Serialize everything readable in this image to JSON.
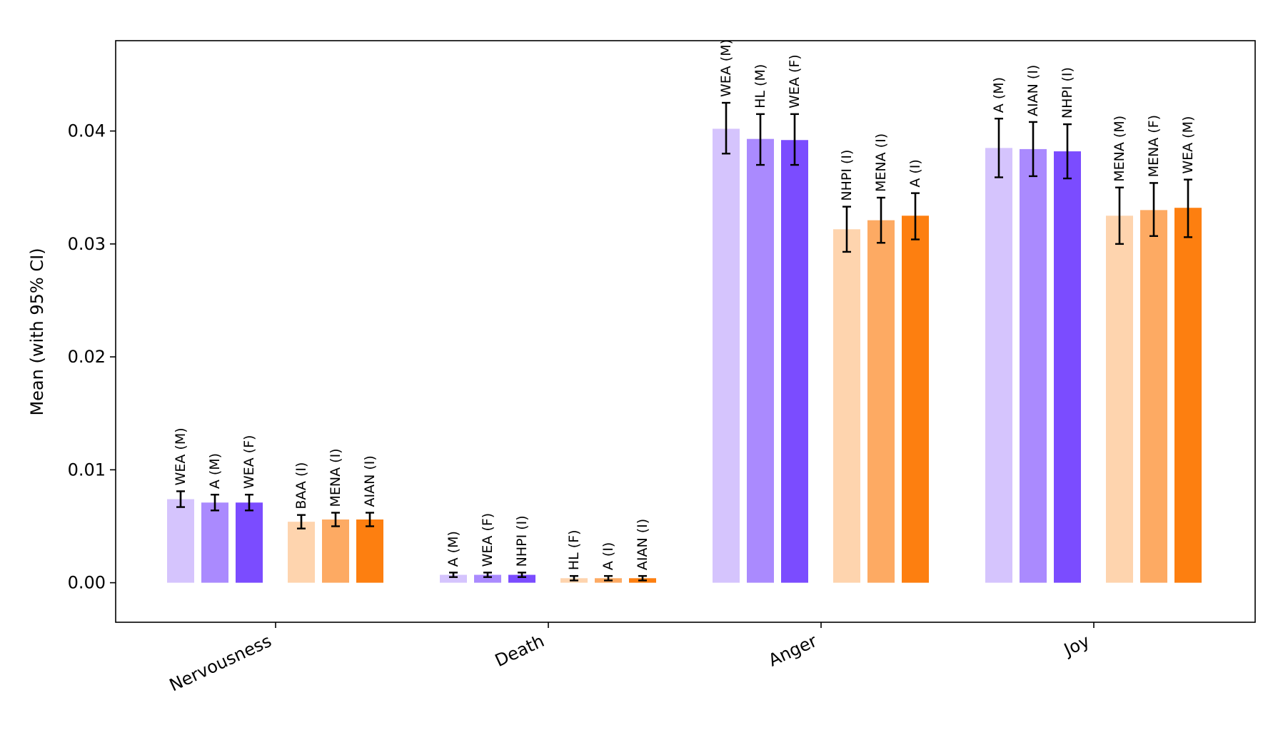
{
  "chart_data": {
    "type": "bar",
    "title": "",
    "xlabel": "",
    "ylabel": "Mean (with 95% CI)",
    "ylim": [
      -0.0035,
      0.048
    ],
    "yticks": [
      0.0,
      0.01,
      0.02,
      0.03,
      0.04
    ],
    "ytick_labels": [
      "0.00",
      "0.01",
      "0.02",
      "0.03",
      "0.04"
    ],
    "grid": false,
    "series_colors": {
      "purple": [
        "#d5c4fd",
        "#aa8afe",
        "#7b4cff"
      ],
      "orange": [
        "#fed4ae",
        "#fdaa63",
        "#fd7f10"
      ]
    },
    "categories": [
      {
        "name": "Nervousness",
        "purple": [
          {
            "label": "WEA (M)",
            "value": 0.0074,
            "ci_low": 0.0067,
            "ci_high": 0.0081
          },
          {
            "label": "A (M)",
            "value": 0.0071,
            "ci_low": 0.0064,
            "ci_high": 0.0078
          },
          {
            "label": "WEA (F)",
            "value": 0.0071,
            "ci_low": 0.0064,
            "ci_high": 0.0078
          }
        ],
        "orange": [
          {
            "label": "BAA (I)",
            "value": 0.0054,
            "ci_low": 0.0048,
            "ci_high": 0.006
          },
          {
            "label": "MENA (I)",
            "value": 0.0056,
            "ci_low": 0.005,
            "ci_high": 0.0062
          },
          {
            "label": "AIAN (I)",
            "value": 0.0056,
            "ci_low": 0.005,
            "ci_high": 0.0062
          }
        ]
      },
      {
        "name": "Death",
        "purple": [
          {
            "label": "A (M)",
            "value": 0.0007,
            "ci_low": 0.0005,
            "ci_high": 0.0009
          },
          {
            "label": "WEA (F)",
            "value": 0.0007,
            "ci_low": 0.0005,
            "ci_high": 0.0009
          },
          {
            "label": "NHPI (I)",
            "value": 0.0007,
            "ci_low": 0.0005,
            "ci_high": 0.0009
          }
        ],
        "orange": [
          {
            "label": "HL (F)",
            "value": 0.0004,
            "ci_low": 0.0002,
            "ci_high": 0.0006
          },
          {
            "label": "A (I)",
            "value": 0.0004,
            "ci_low": 0.0002,
            "ci_high": 0.0006
          },
          {
            "label": "AIAN (I)",
            "value": 0.0004,
            "ci_low": 0.0002,
            "ci_high": 0.0006
          }
        ]
      },
      {
        "name": "Anger",
        "purple": [
          {
            "label": "WEA (M)",
            "value": 0.0402,
            "ci_low": 0.038,
            "ci_high": 0.0425
          },
          {
            "label": "HL (M)",
            "value": 0.0393,
            "ci_low": 0.037,
            "ci_high": 0.0415
          },
          {
            "label": "WEA (F)",
            "value": 0.0392,
            "ci_low": 0.037,
            "ci_high": 0.0415
          }
        ],
        "orange": [
          {
            "label": "NHPI (I)",
            "value": 0.0313,
            "ci_low": 0.0293,
            "ci_high": 0.0333
          },
          {
            "label": "MENA (I)",
            "value": 0.0321,
            "ci_low": 0.0301,
            "ci_high": 0.0341
          },
          {
            "label": "A (I)",
            "value": 0.0325,
            "ci_low": 0.0304,
            "ci_high": 0.0345
          }
        ]
      },
      {
        "name": "Joy",
        "purple": [
          {
            "label": "A (M)",
            "value": 0.0385,
            "ci_low": 0.0359,
            "ci_high": 0.0411
          },
          {
            "label": "AIAN (I)",
            "value": 0.0384,
            "ci_low": 0.036,
            "ci_high": 0.0408
          },
          {
            "label": "NHPI (I)",
            "value": 0.0382,
            "ci_low": 0.0358,
            "ci_high": 0.0406
          }
        ],
        "orange": [
          {
            "label": "MENA (M)",
            "value": 0.0325,
            "ci_low": 0.03,
            "ci_high": 0.035
          },
          {
            "label": "MENA (F)",
            "value": 0.033,
            "ci_low": 0.0307,
            "ci_high": 0.0354
          },
          {
            "label": "WEA (M)",
            "value": 0.0332,
            "ci_low": 0.0306,
            "ci_high": 0.0357
          }
        ]
      }
    ]
  }
}
